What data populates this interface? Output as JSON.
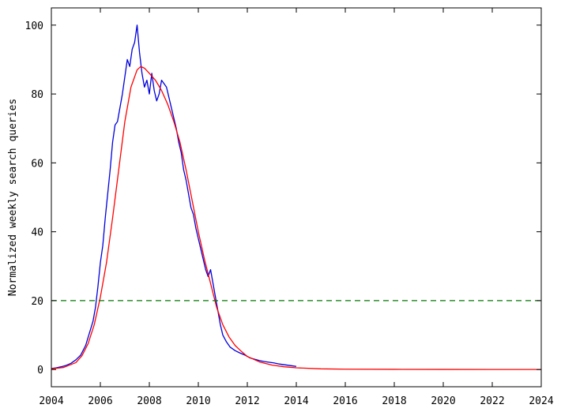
{
  "chart_data": {
    "type": "line",
    "title": "",
    "xlabel": "",
    "ylabel": "Normalized weekly search queries",
    "xlim": [
      2004,
      2024
    ],
    "ylim": [
      -5,
      105
    ],
    "x_ticks": [
      2004,
      2006,
      2008,
      2010,
      2012,
      2014,
      2016,
      2018,
      2020,
      2022,
      2024
    ],
    "y_ticks": [
      0,
      20,
      40,
      60,
      80,
      100
    ],
    "x_tick_labels": [
      "2004",
      "2006",
      "2008",
      "2010",
      "2012",
      "2014",
      "2016",
      "2018",
      "2020",
      "2022",
      "2024"
    ],
    "y_tick_labels": [
      "0",
      "20",
      "40",
      "60",
      "80",
      "100"
    ],
    "grid": false,
    "legend": "none",
    "series": [
      {
        "color": "#0000dd",
        "style": "solid",
        "points": [
          [
            2004.0,
            0.3
          ],
          [
            2004.2,
            0.5
          ],
          [
            2004.4,
            0.8
          ],
          [
            2004.6,
            1.2
          ],
          [
            2004.8,
            1.8
          ],
          [
            2005.0,
            2.8
          ],
          [
            2005.2,
            4.2
          ],
          [
            2005.4,
            7.0
          ],
          [
            2005.55,
            10.5
          ],
          [
            2005.7,
            14.0
          ],
          [
            2005.8,
            18.0
          ],
          [
            2005.9,
            24.0
          ],
          [
            2006.0,
            31.0
          ],
          [
            2006.1,
            36.0
          ],
          [
            2006.2,
            44.0
          ],
          [
            2006.3,
            51.0
          ],
          [
            2006.4,
            58.0
          ],
          [
            2006.5,
            66.0
          ],
          [
            2006.6,
            71.0
          ],
          [
            2006.7,
            72.0
          ],
          [
            2006.8,
            76.0
          ],
          [
            2006.9,
            80.0
          ],
          [
            2007.0,
            85.0
          ],
          [
            2007.1,
            90.0
          ],
          [
            2007.2,
            88.0
          ],
          [
            2007.3,
            93.0
          ],
          [
            2007.4,
            95.0
          ],
          [
            2007.5,
            100.0
          ],
          [
            2007.6,
            92.0
          ],
          [
            2007.7,
            86.0
          ],
          [
            2007.8,
            82.0
          ],
          [
            2007.9,
            84.0
          ],
          [
            2008.0,
            80.0
          ],
          [
            2008.1,
            86.0
          ],
          [
            2008.2,
            81.0
          ],
          [
            2008.3,
            78.0
          ],
          [
            2008.4,
            80.0
          ],
          [
            2008.5,
            84.0
          ],
          [
            2008.6,
            83.0
          ],
          [
            2008.7,
            82.0
          ],
          [
            2008.8,
            79.0
          ],
          [
            2008.9,
            76.0
          ],
          [
            2009.0,
            73.0
          ],
          [
            2009.1,
            70.0
          ],
          [
            2009.2,
            66.0
          ],
          [
            2009.3,
            63.0
          ],
          [
            2009.4,
            58.0
          ],
          [
            2009.5,
            55.0
          ],
          [
            2009.6,
            51.0
          ],
          [
            2009.7,
            47.0
          ],
          [
            2009.8,
            45.0
          ],
          [
            2009.9,
            41.0
          ],
          [
            2010.0,
            38.0
          ],
          [
            2010.1,
            35.0
          ],
          [
            2010.2,
            32.0
          ],
          [
            2010.3,
            29.0
          ],
          [
            2010.4,
            27.0
          ],
          [
            2010.5,
            29.0
          ],
          [
            2010.6,
            25.0
          ],
          [
            2010.7,
            21.0
          ],
          [
            2010.8,
            17.0
          ],
          [
            2010.9,
            13.0
          ],
          [
            2011.0,
            10.0
          ],
          [
            2011.15,
            8.0
          ],
          [
            2011.3,
            6.5
          ],
          [
            2011.5,
            5.5
          ],
          [
            2011.7,
            4.8
          ],
          [
            2011.9,
            4.2
          ],
          [
            2012.1,
            3.4
          ],
          [
            2012.3,
            3.0
          ],
          [
            2012.5,
            2.6
          ],
          [
            2012.7,
            2.3
          ],
          [
            2012.9,
            2.1
          ],
          [
            2013.1,
            1.9
          ],
          [
            2013.3,
            1.6
          ],
          [
            2013.5,
            1.4
          ],
          [
            2013.7,
            1.2
          ],
          [
            2013.9,
            1.0
          ],
          [
            2014.0,
            0.9
          ]
        ]
      },
      {
        "color": "#ff0000",
        "style": "solid",
        "points": [
          [
            2004.0,
            0.2
          ],
          [
            2004.5,
            0.6
          ],
          [
            2005.0,
            2.0
          ],
          [
            2005.25,
            4.0
          ],
          [
            2005.5,
            7.5
          ],
          [
            2005.75,
            13.0
          ],
          [
            2006.0,
            21.0
          ],
          [
            2006.25,
            31.0
          ],
          [
            2006.5,
            44.0
          ],
          [
            2006.75,
            58.0
          ],
          [
            2007.0,
            72.0
          ],
          [
            2007.25,
            82.0
          ],
          [
            2007.5,
            87.0
          ],
          [
            2007.65,
            88.0
          ],
          [
            2007.8,
            87.5
          ],
          [
            2008.0,
            86.0
          ],
          [
            2008.25,
            84.0
          ],
          [
            2008.5,
            81.0
          ],
          [
            2008.75,
            77.0
          ],
          [
            2009.0,
            72.0
          ],
          [
            2009.25,
            66.0
          ],
          [
            2009.5,
            58.0
          ],
          [
            2009.75,
            49.0
          ],
          [
            2010.0,
            40.0
          ],
          [
            2010.25,
            32.0
          ],
          [
            2010.5,
            25.0
          ],
          [
            2010.75,
            18.0
          ],
          [
            2011.0,
            13.0
          ],
          [
            2011.25,
            9.5
          ],
          [
            2011.5,
            7.0
          ],
          [
            2011.75,
            5.3
          ],
          [
            2012.0,
            3.8
          ],
          [
            2012.5,
            2.2
          ],
          [
            2013.0,
            1.3
          ],
          [
            2013.5,
            0.8
          ],
          [
            2014.0,
            0.5
          ],
          [
            2015.0,
            0.2
          ],
          [
            2016.0,
            0.1
          ],
          [
            2018.0,
            0.05
          ],
          [
            2020.0,
            0.03
          ],
          [
            2022.0,
            0.02
          ],
          [
            2024.0,
            0.01
          ]
        ]
      },
      {
        "color": "#007700",
        "style": "dashed",
        "points": [
          [
            2004,
            20
          ],
          [
            2024,
            20
          ]
        ]
      }
    ]
  }
}
